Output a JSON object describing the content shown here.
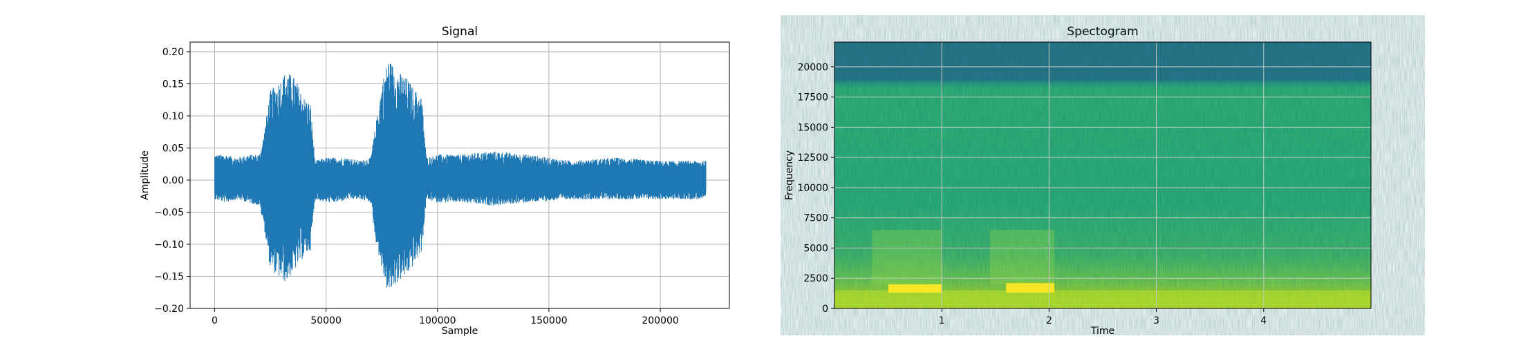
{
  "chart_data": [
    {
      "type": "line",
      "title": "Signal",
      "xlabel": "Sample",
      "ylabel": "Amplitude",
      "xlim": [
        -11000,
        231000
      ],
      "ylim": [
        -0.2,
        0.215
      ],
      "x_ticks": [
        0,
        50000,
        100000,
        150000,
        200000
      ],
      "x_tick_labels": [
        "0",
        "50000",
        "100000",
        "150000",
        "200000"
      ],
      "y_ticks": [
        -0.2,
        -0.15,
        -0.1,
        -0.05,
        0.0,
        0.05,
        0.1,
        0.15,
        0.2
      ],
      "y_tick_labels": [
        "−0.20",
        "−0.15",
        "−0.10",
        "−0.05",
        "0.00",
        "0.05",
        "0.10",
        "0.15",
        "0.20"
      ],
      "grid": true,
      "line_color": "#1f77b4",
      "n_samples": 220500,
      "envelope_x": [
        0,
        5000,
        10000,
        15000,
        20000,
        22000,
        25000,
        28000,
        32000,
        36000,
        40000,
        43000,
        45000,
        50000,
        55000,
        60000,
        65000,
        70000,
        72000,
        75000,
        78000,
        82000,
        86000,
        90000,
        93000,
        95000,
        100000,
        110000,
        125000,
        140000,
        160000,
        180000,
        200000,
        220500
      ],
      "envelope_upper": [
        0.04,
        0.04,
        0.035,
        0.04,
        0.04,
        0.07,
        0.14,
        0.15,
        0.17,
        0.16,
        0.13,
        0.12,
        0.03,
        0.035,
        0.035,
        0.035,
        0.03,
        0.035,
        0.08,
        0.15,
        0.19,
        0.17,
        0.16,
        0.14,
        0.13,
        0.035,
        0.04,
        0.04,
        0.045,
        0.04,
        0.03,
        0.035,
        0.03,
        0.03
      ],
      "envelope_lower": [
        -0.03,
        -0.035,
        -0.03,
        -0.035,
        -0.04,
        -0.07,
        -0.14,
        -0.15,
        -0.16,
        -0.14,
        -0.12,
        -0.11,
        -0.03,
        -0.035,
        -0.035,
        -0.03,
        -0.03,
        -0.035,
        -0.09,
        -0.14,
        -0.18,
        -0.16,
        -0.15,
        -0.13,
        -0.11,
        -0.03,
        -0.035,
        -0.035,
        -0.04,
        -0.035,
        -0.03,
        -0.03,
        -0.03,
        -0.03
      ]
    },
    {
      "type": "heatmap",
      "title": "Spectogram",
      "xlabel": "Time",
      "ylabel": "Frequency",
      "xlim": [
        0.0,
        5.0
      ],
      "ylim": [
        0,
        22050
      ],
      "x_ticks": [
        1,
        2,
        3,
        4
      ],
      "x_tick_labels": [
        "1",
        "2",
        "3",
        "4"
      ],
      "y_ticks": [
        0,
        2500,
        5000,
        7500,
        10000,
        12500,
        15000,
        17500,
        20000
      ],
      "y_tick_labels": [
        "0",
        "2500",
        "5000",
        "7500",
        "10000",
        "12500",
        "15000",
        "17500",
        "20000"
      ],
      "grid": true,
      "colormap": "viridis",
      "colors": {
        "top_band": "#2a788e",
        "mid_band": "#2fb47c",
        "low_band": "#b5de2b",
        "hot": "#fde725"
      },
      "band_edges_hz": {
        "cutoff": 18800,
        "low_energy_top": 1500
      },
      "hot_regions": [
        {
          "t": [
            0.5,
            1.0
          ],
          "f": [
            1300,
            2000
          ]
        },
        {
          "t": [
            1.6,
            2.05
          ],
          "f": [
            1300,
            2100
          ]
        }
      ]
    }
  ]
}
